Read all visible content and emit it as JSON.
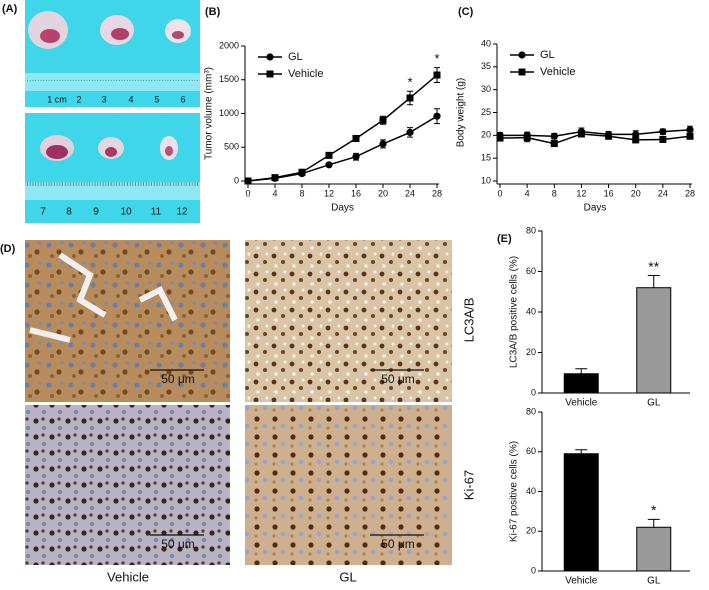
{
  "panel_a": {
    "label": "(A)",
    "ruler_top": [
      "1 cm",
      "2",
      "3",
      "4",
      "5",
      "6"
    ],
    "ruler_bottom": [
      "7",
      "8",
      "9",
      "10",
      "11",
      "12"
    ]
  },
  "panel_d": {
    "label": "(D)",
    "scale_bars": [
      "50 μm",
      "50 μm",
      "50 μm",
      "50 μm"
    ],
    "row_labels": [
      "LC3A/B",
      "Ki-67"
    ],
    "column_labels": [
      "Vehicle",
      "GL"
    ]
  },
  "chart_data": [
    {
      "type": "line",
      "panel_label": "(B)",
      "xlabel": "Days",
      "ylabel": "Tumor volume (mm³)",
      "x": [
        0,
        4,
        8,
        12,
        16,
        20,
        24,
        28
      ],
      "xlim": [
        0,
        28
      ],
      "xticks": [
        0,
        4,
        8,
        12,
        16,
        20,
        24,
        28
      ],
      "ylim": [
        0,
        2000
      ],
      "yticks": [
        0,
        500,
        1000,
        1500,
        2000
      ],
      "legend": "upper left",
      "series": [
        {
          "name": "GL",
          "marker": "circle",
          "color": "#000000",
          "values": [
            0,
            40,
            110,
            240,
            360,
            550,
            720,
            960
          ],
          "errors": [
            0,
            10,
            20,
            25,
            50,
            60,
            70,
            110
          ]
        },
        {
          "name": "Vehicle",
          "marker": "square",
          "color": "#000000",
          "values": [
            0,
            50,
            130,
            380,
            630,
            900,
            1230,
            1570
          ],
          "errors": [
            0,
            10,
            20,
            30,
            40,
            60,
            100,
            110
          ]
        }
      ],
      "annotations": [
        {
          "text": "*",
          "x": 24,
          "series": "Vehicle"
        },
        {
          "text": "*",
          "x": 28,
          "series": "Vehicle"
        }
      ]
    },
    {
      "type": "line",
      "panel_label": "(C)",
      "xlabel": "Days",
      "ylabel": "Body weight (g)",
      "x": [
        0,
        4,
        8,
        12,
        16,
        20,
        24,
        28
      ],
      "xlim": [
        0,
        28
      ],
      "xticks": [
        0,
        4,
        8,
        12,
        16,
        20,
        24,
        28
      ],
      "ylim": [
        10,
        40
      ],
      "yticks": [
        10,
        15,
        20,
        25,
        30,
        35,
        40
      ],
      "legend": "upper left",
      "series": [
        {
          "name": "GL",
          "marker": "circle",
          "color": "#000000",
          "values": [
            20,
            20,
            19.8,
            20.8,
            20.2,
            20.2,
            20.8,
            21.2
          ],
          "errors": [
            0.6,
            0.7,
            0.6,
            0.8,
            0.6,
            0.8,
            0.6,
            0.8
          ]
        },
        {
          "name": "Vehicle",
          "marker": "square",
          "color": "#000000",
          "values": [
            19.4,
            19.5,
            18.2,
            20.3,
            19.8,
            19,
            19.1,
            19.8
          ],
          "errors": [
            0.6,
            0.9,
            0.4,
            0.6,
            0.6,
            0.4,
            0.4,
            0.6
          ]
        }
      ],
      "annotations": []
    },
    {
      "type": "bar",
      "panel_label": "(E)",
      "ylabel": "LC3A/B positive cells (%)",
      "categories": [
        "Vehicle",
        "GL"
      ],
      "values": [
        9.5,
        52
      ],
      "errors": [
        2.5,
        6
      ],
      "colors": [
        "#000000",
        "#999999"
      ],
      "ylim": [
        0,
        80
      ],
      "yticks": [
        0,
        20,
        40,
        60,
        80
      ],
      "annotations": [
        {
          "text": "**",
          "category": "GL"
        }
      ]
    },
    {
      "type": "bar",
      "ylabel": "Ki-67 positive cells (%)",
      "categories": [
        "Vehicle",
        "GL"
      ],
      "values": [
        59,
        22
      ],
      "errors": [
        2,
        4
      ],
      "colors": [
        "#000000",
        "#999999"
      ],
      "ylim": [
        0,
        80
      ],
      "yticks": [
        0,
        20,
        40,
        60,
        80
      ],
      "annotations": [
        {
          "text": "*",
          "category": "GL"
        }
      ]
    }
  ]
}
